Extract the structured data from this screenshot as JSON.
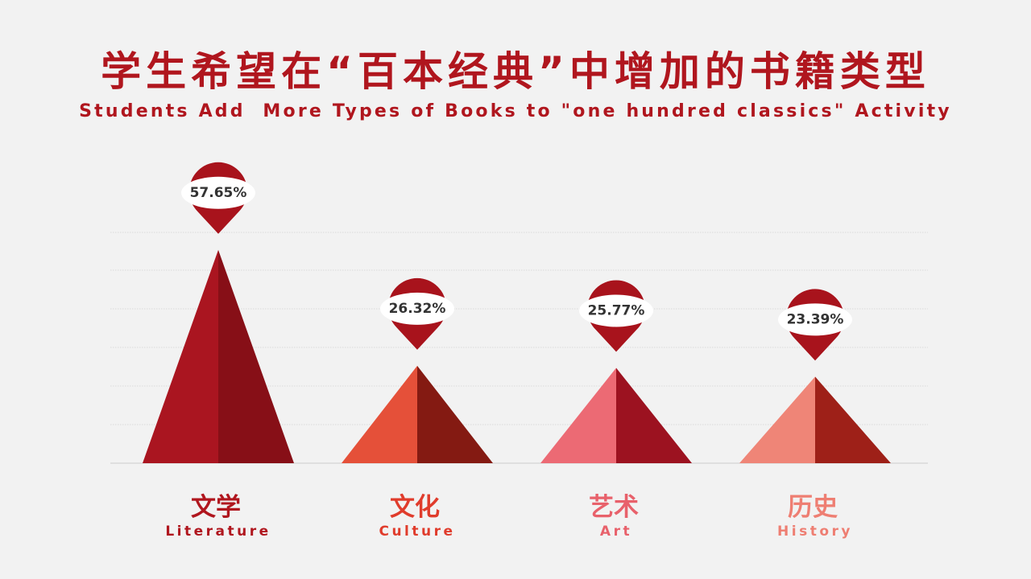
{
  "title_cn": "学生希望在“百本经典”中增加的书籍类型",
  "title_en": "Students Add  More Types of Books to \"one hundred classics\" Activity",
  "colors": {
    "title": "#b0161e",
    "gridline": "#d4d4d4",
    "marker_fill": "#a8131c",
    "marker_badge": "#ffffff"
  },
  "chart_data": {
    "type": "bar",
    "shape": "pyramid",
    "categories": [
      "Literature",
      "Culture",
      "Art",
      "History"
    ],
    "categories_cn": [
      "文学",
      "文化",
      "艺术",
      "历史"
    ],
    "values": [
      57.65,
      26.32,
      25.77,
      23.39
    ],
    "value_labels": [
      "57.65%",
      "26.32%",
      "25.77%",
      "23.39%"
    ],
    "grid": true,
    "colors": [
      {
        "left": "#aa1520",
        "right": "#870f17",
        "label_cn": "#b0161e",
        "label_en": "#b0161e"
      },
      {
        "left": "#e55039",
        "right": "#841a12",
        "label_cn": "#e03c2c",
        "label_en": "#e03c2c"
      },
      {
        "left": "#ec6a74",
        "right": "#9c1220",
        "label_cn": "#e8616b",
        "label_en": "#e8616b"
      },
      {
        "left": "#ef8577",
        "right": "#9e2018",
        "label_cn": "#ee7e72",
        "label_en": "#ee7e72"
      }
    ]
  }
}
